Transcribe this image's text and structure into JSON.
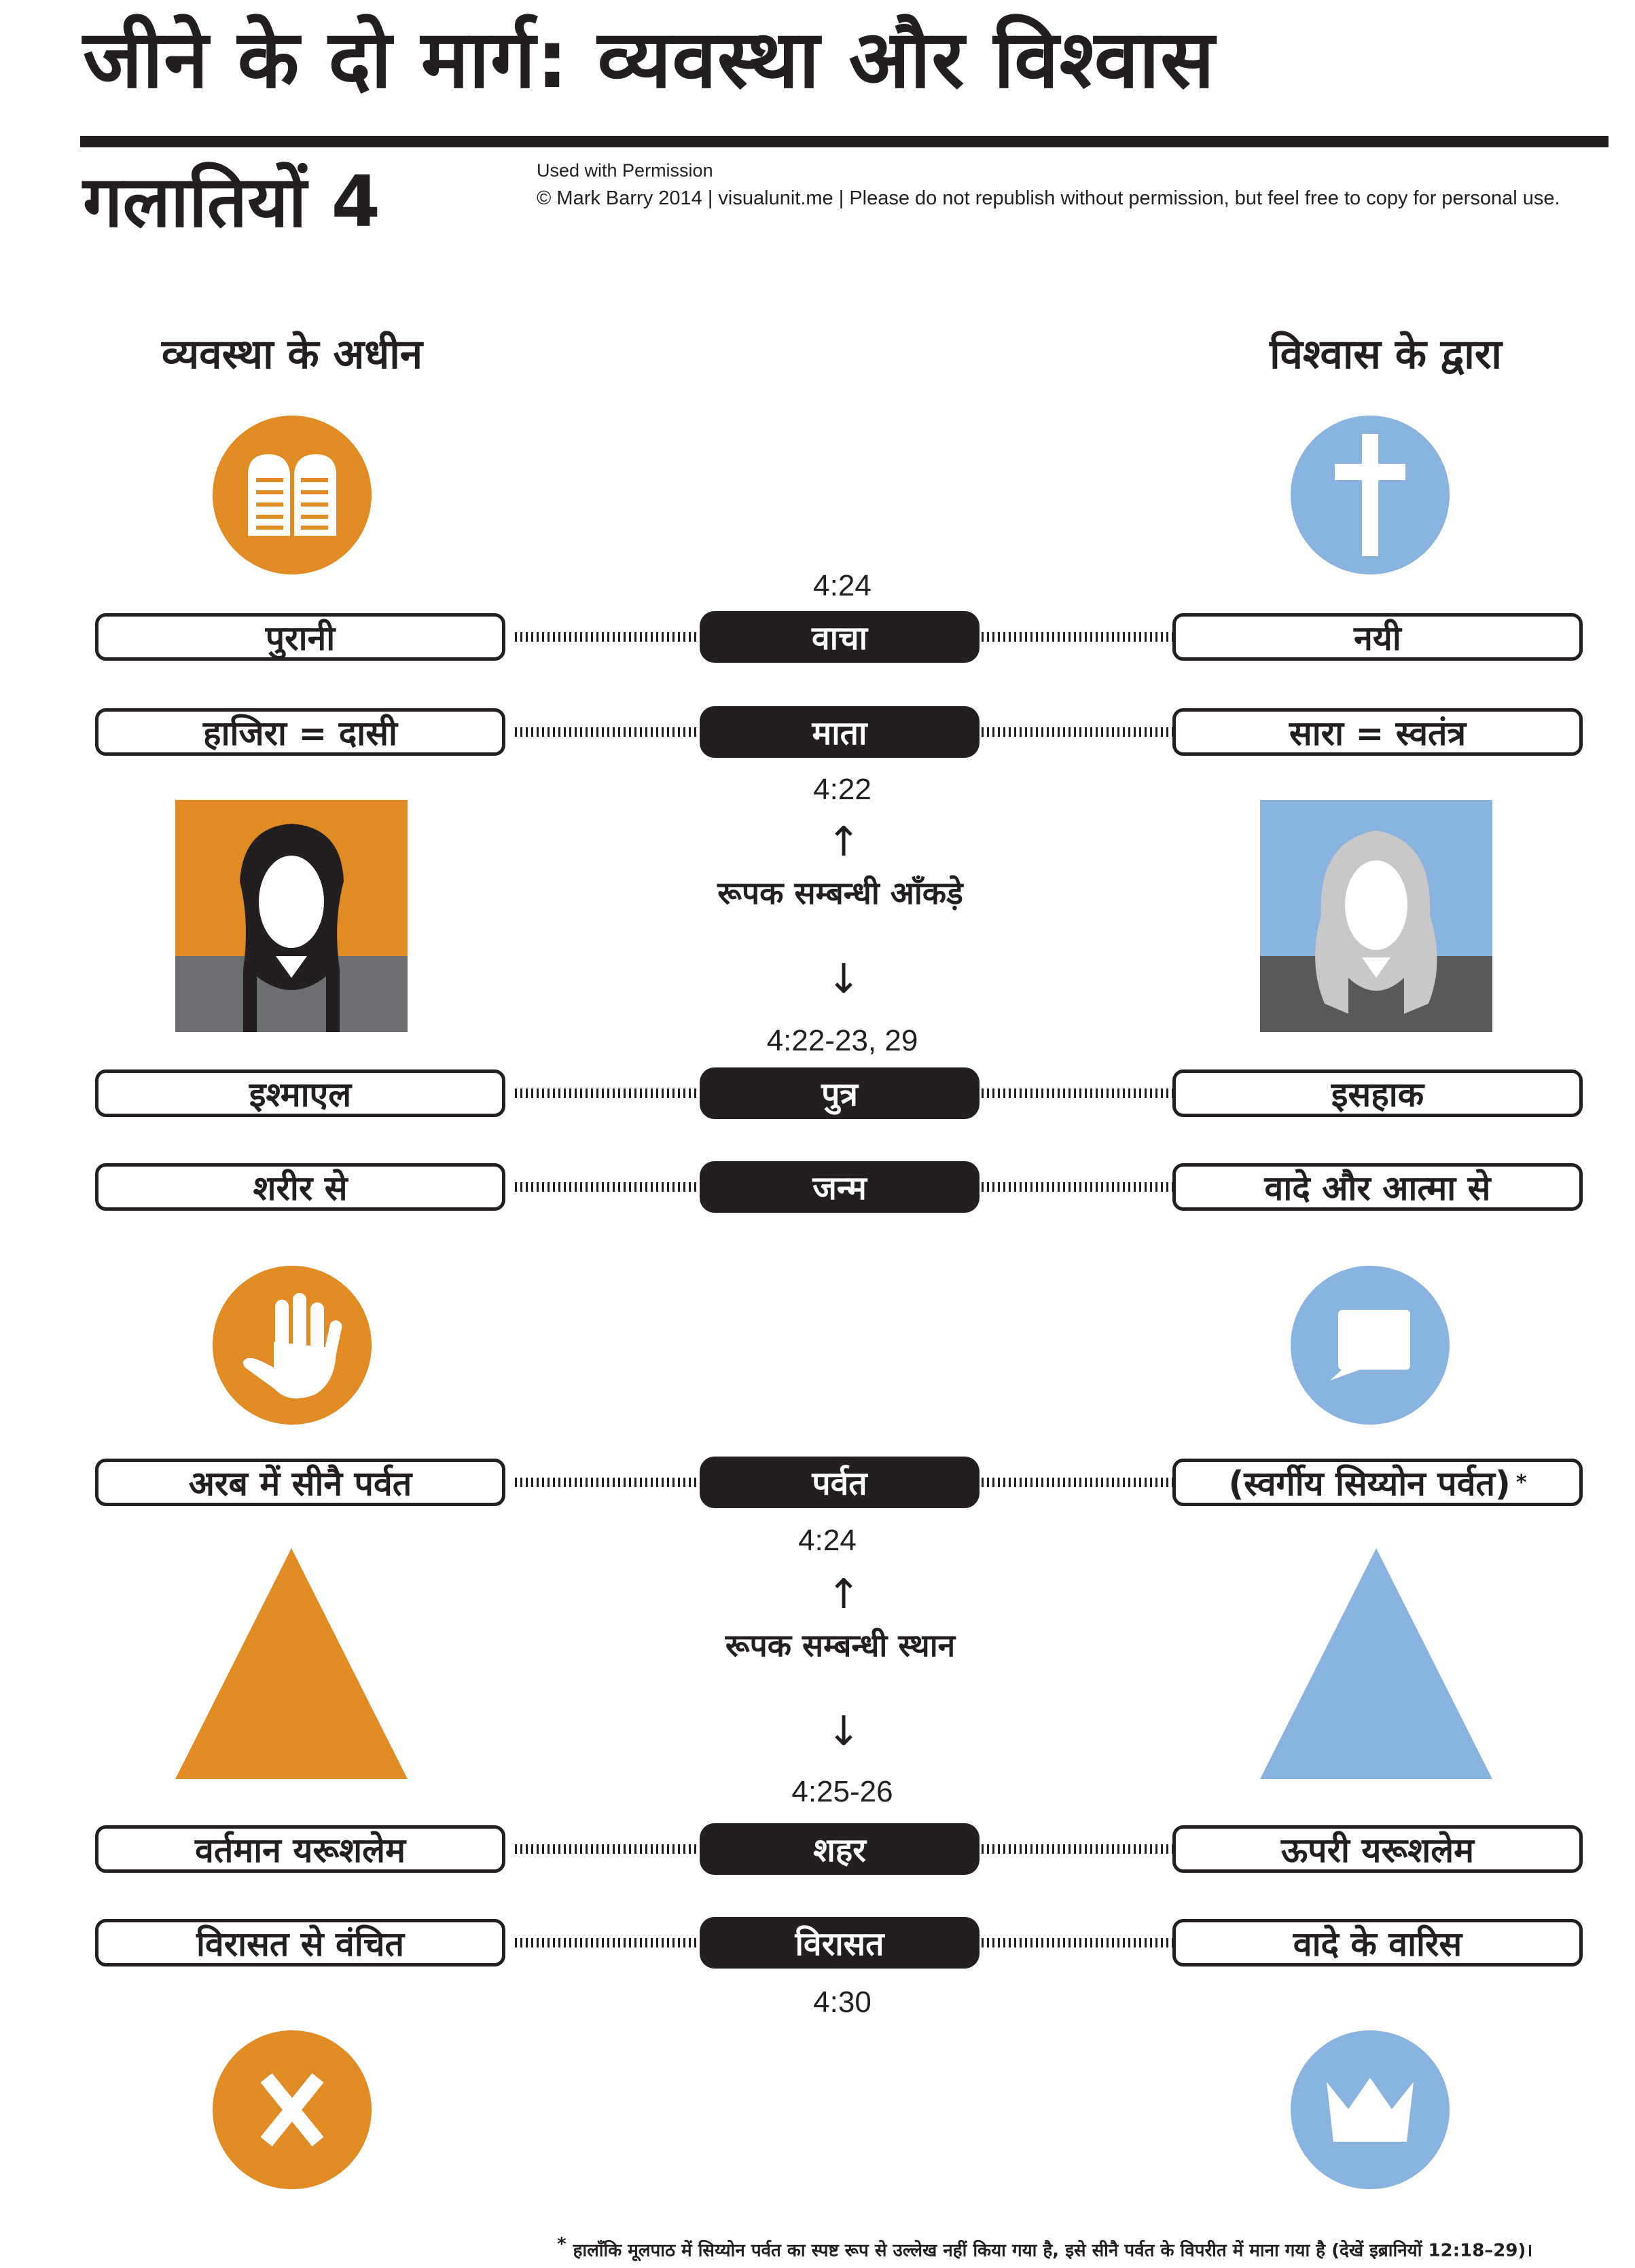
{
  "header": {
    "title": "जीने के दो मार्ग: व्यवस्था और विश्वास",
    "subtitle": "गलातियों 4",
    "permission": "Used with Permission",
    "copyright": "© Mark Barry 2014  |  visualunit.me  |  Please do not republish without permission, but feel free to copy for personal use."
  },
  "columns": {
    "left_heading": "व्यवस्था के अधीन",
    "right_heading": "विश्वास के द्वारा"
  },
  "colors": {
    "law": "#e08b23",
    "faith": "#8ab4e0",
    "dark": "#231f20"
  },
  "icons": {
    "top_left": "tablets-icon",
    "top_right": "cross-icon",
    "mid_left": "hand-icon",
    "mid_right": "speech-bubble-icon",
    "bottom_left": "x-icon",
    "bottom_right": "crown-icon"
  },
  "rows": [
    {
      "left": "पुरानी",
      "center": "वाचा",
      "right": "नयी"
    },
    {
      "left": "हाजिरा = दासी",
      "center": "माता",
      "right": "सारा = स्वतंत्र"
    },
    {
      "left": "इश्माएल",
      "center": "पुत्र",
      "right": "इसहाक"
    },
    {
      "left": "शरीर से",
      "center": "जन्म",
      "right": "वादे और आत्मा से"
    },
    {
      "left": "अरब में सीनै पर्वत",
      "center": "पर्वत",
      "right": "(स्वर्गीय सिय्योन पर्वत)",
      "right_mark": "*"
    },
    {
      "left": "वर्तमान यरूशलेम",
      "center": "शहर",
      "right": "ऊपरी यरूशलेम"
    },
    {
      "left": "विरासत से वंचित",
      "center": "विरासत",
      "right": "वादे के वारिस"
    }
  ],
  "refs": {
    "r1": "4:24",
    "r2": "4:22",
    "r3": "4:22-23, 29",
    "r4": "4:24",
    "r5": "4:25-26",
    "r6": "4:30"
  },
  "figures": {
    "women_label": "रूपक सम्बन्धी आँकड़े",
    "mountains_label": "रूपक सम्बन्धी स्थान",
    "up_arrow": "↑",
    "down_arrow": "↓"
  },
  "footnote": {
    "mark": "*",
    "text": "हालाँकि मूलपाठ में सिय्योन पर्वत का स्पष्ट रूप से उल्लेख नहीं किया गया है, इसे सीनै पर्वत के विपरीत में माना गया है (देखें इब्रानियों 12:18–29)।"
  }
}
